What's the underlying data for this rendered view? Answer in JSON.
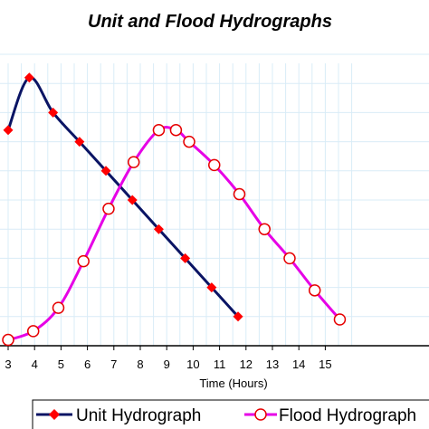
{
  "chart_data": {
    "type": "line",
    "title": "Unit and Flood Hydrographs",
    "xlabel": "Time (Hours)",
    "ylabel": "",
    "xlim": [
      3,
      15.5
    ],
    "ylim": [
      0,
      10
    ],
    "xticks": [
      "3",
      "4",
      "5",
      "6",
      "7",
      "8",
      "9",
      "10",
      "11",
      "12",
      "13",
      "14",
      "15"
    ],
    "grid": true,
    "legend_position": "bottom",
    "series": [
      {
        "name": "Unit Hydrograph",
        "color": "#0a1464",
        "marker": "red-diamond",
        "marker_color": "#ff0000",
        "x": [
          3.0,
          3.8,
          4.7,
          5.7,
          6.7,
          7.7,
          8.7,
          9.7,
          10.7,
          11.7
        ],
        "y": [
          7.4,
          9.2,
          8.0,
          7.0,
          6.0,
          5.0,
          4.0,
          3.0,
          2.0,
          1.0
        ]
      },
      {
        "name": "Flood Hydrograph",
        "color": "#e600e6",
        "marker": "open-circle",
        "marker_color": "#e60000",
        "x": [
          3.0,
          3.95,
          4.9,
          5.85,
          6.8,
          7.75,
          8.7,
          9.35,
          9.85,
          10.8,
          11.75,
          12.7,
          13.65,
          14.6,
          15.55
        ],
        "y": [
          0.2,
          0.5,
          1.3,
          2.9,
          4.7,
          6.3,
          7.4,
          7.4,
          7.0,
          6.2,
          5.2,
          4.0,
          3.0,
          1.9,
          0.9
        ]
      }
    ]
  }
}
